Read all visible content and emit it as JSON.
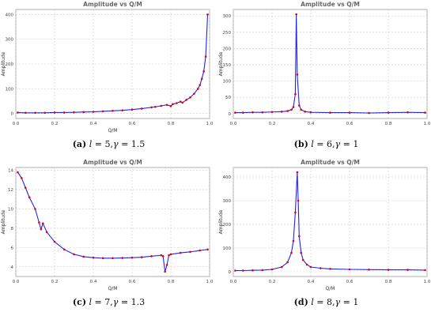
{
  "figure": {
    "subfigures": [
      {
        "label": "(a)",
        "l": "5",
        "gamma": "1.5"
      },
      {
        "label": "(b)",
        "l": "6",
        "gamma": "1"
      },
      {
        "label": "(c)",
        "l": "7",
        "gamma": "1.3"
      },
      {
        "label": "(d)",
        "l": "8",
        "gamma": "1"
      }
    ]
  },
  "chart_data": [
    {
      "type": "line",
      "title": "Amplitude vs Q/M",
      "xlabel": "Q/M",
      "ylabel": "Amplitude",
      "xlim": [
        0,
        1
      ],
      "ylim": [
        -20,
        420
      ],
      "xticks": [
        "0.0",
        "0.2",
        "0.4",
        "0.6",
        "0.8",
        "1.0"
      ],
      "xtick_values": [
        0,
        0.2,
        0.4,
        0.6,
        0.8,
        1.0
      ],
      "yticks": [
        "0",
        "100",
        "200",
        "300",
        "400"
      ],
      "ytick_values": [
        0,
        100,
        200,
        300,
        400
      ],
      "grid": true,
      "colors": {
        "line": "#2020ff",
        "marker": "#e00000"
      },
      "x": [
        0.01,
        0.05,
        0.1,
        0.15,
        0.2,
        0.25,
        0.3,
        0.35,
        0.4,
        0.45,
        0.5,
        0.55,
        0.6,
        0.65,
        0.7,
        0.72,
        0.75,
        0.78,
        0.8,
        0.81,
        0.83,
        0.85,
        0.86,
        0.88,
        0.9,
        0.92,
        0.94,
        0.95,
        0.96,
        0.97,
        0.98,
        0.99
      ],
      "y": [
        4,
        3,
        3,
        3,
        4,
        4,
        5,
        6,
        7,
        9,
        11,
        13,
        16,
        20,
        25,
        27,
        31,
        35,
        30,
        38,
        42,
        48,
        44,
        55,
        65,
        80,
        100,
        115,
        140,
        170,
        230,
        400
      ]
    },
    {
      "type": "line",
      "title": "Amplitude vs Q/M",
      "xlabel": "",
      "ylabel": "Amplitude",
      "xlim": [
        0,
        1
      ],
      "ylim": [
        -15,
        320
      ],
      "xticks": [
        "0.0",
        "0.2",
        "0.4",
        "0.6",
        "0.8",
        "1.0"
      ],
      "xtick_values": [
        0,
        0.2,
        0.4,
        0.6,
        0.8,
        1.0
      ],
      "yticks": [
        "0",
        "50",
        "100",
        "150",
        "200",
        "250",
        "300"
      ],
      "ytick_values": [
        0,
        50,
        100,
        150,
        200,
        250,
        300
      ],
      "grid": true,
      "colors": {
        "line": "#2020ff",
        "marker": "#e00000"
      },
      "x": [
        0.01,
        0.05,
        0.1,
        0.15,
        0.2,
        0.25,
        0.28,
        0.3,
        0.31,
        0.32,
        0.325,
        0.33,
        0.34,
        0.35,
        0.37,
        0.4,
        0.5,
        0.6,
        0.7,
        0.8,
        0.9,
        0.99
      ],
      "y": [
        3,
        3,
        4,
        4,
        5,
        6,
        8,
        12,
        20,
        60,
        305,
        120,
        25,
        12,
        6,
        4,
        3,
        3,
        2,
        3,
        4,
        3
      ]
    },
    {
      "type": "line",
      "title": "Amplitude vs Q/M",
      "xlabel": "Q/M",
      "ylabel": "Amplitude",
      "xlim": [
        0,
        1
      ],
      "ylim": [
        3,
        14.3
      ],
      "xticks": [
        "0.0",
        "0.2",
        "0.4",
        "0.6",
        "0.8",
        "1.0"
      ],
      "xtick_values": [
        0,
        0.2,
        0.4,
        0.6,
        0.8,
        1.0
      ],
      "yticks": [
        "4",
        "6",
        "8",
        "10",
        "12",
        "14"
      ],
      "ytick_values": [
        4,
        6,
        8,
        10,
        12,
        14
      ],
      "grid": true,
      "colors": {
        "line": "#2020ff",
        "marker": "#e00000"
      },
      "x": [
        0.01,
        0.03,
        0.05,
        0.07,
        0.1,
        0.12,
        0.13,
        0.14,
        0.16,
        0.2,
        0.25,
        0.3,
        0.35,
        0.4,
        0.45,
        0.5,
        0.55,
        0.6,
        0.65,
        0.7,
        0.75,
        0.76,
        0.77,
        0.78,
        0.79,
        0.8,
        0.85,
        0.9,
        0.95,
        0.99
      ],
      "y": [
        13.8,
        13.2,
        12.2,
        11.2,
        10,
        8.6,
        7.9,
        8.5,
        7.6,
        6.6,
        5.8,
        5.3,
        5.05,
        4.95,
        4.9,
        4.9,
        4.92,
        4.95,
        5.0,
        5.1,
        5.2,
        5.1,
        3.5,
        4.2,
        5.2,
        5.3,
        5.45,
        5.55,
        5.7,
        5.8
      ]
    },
    {
      "type": "line",
      "title": "Amplitude vs Q/M",
      "xlabel": "Q/M",
      "ylabel": "Amplitude",
      "xlim": [
        0,
        1
      ],
      "ylim": [
        -20,
        440
      ],
      "xticks": [
        "0.0",
        "0.2",
        "0.4",
        "0.6",
        "0.8",
        "1.0"
      ],
      "xtick_values": [
        0,
        0.2,
        0.4,
        0.6,
        0.8,
        1.0
      ],
      "yticks": [
        "0",
        "100",
        "200",
        "300",
        "400"
      ],
      "ytick_values": [
        0,
        100,
        200,
        300,
        400
      ],
      "grid": true,
      "colors": {
        "line": "#2020ff",
        "marker": "#e00000"
      },
      "x": [
        0.01,
        0.05,
        0.1,
        0.15,
        0.2,
        0.25,
        0.28,
        0.3,
        0.31,
        0.32,
        0.33,
        0.335,
        0.34,
        0.35,
        0.36,
        0.38,
        0.4,
        0.45,
        0.5,
        0.6,
        0.7,
        0.8,
        0.9,
        0.99
      ],
      "y": [
        5,
        5,
        6,
        7,
        10,
        20,
        40,
        80,
        130,
        250,
        420,
        300,
        150,
        80,
        50,
        30,
        20,
        15,
        12,
        10,
        9,
        8,
        8,
        7
      ]
    }
  ]
}
